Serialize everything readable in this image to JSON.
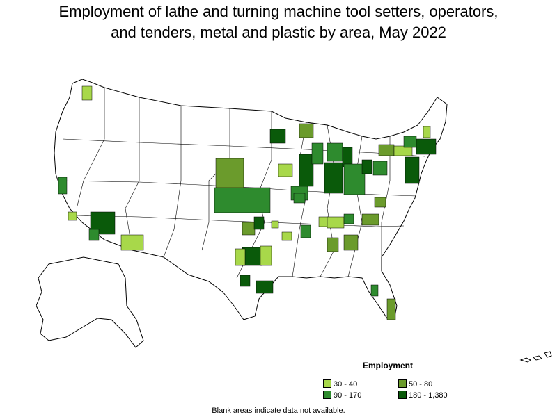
{
  "title_line1": "Employment of lathe and turning machine tool setters, operators,",
  "title_line2": "and tenders, metal and plastic by area, May 2022",
  "legend": {
    "title": "Employment",
    "items": [
      {
        "label": "30 - 40",
        "color": "#a8d84a"
      },
      {
        "label": "50 - 80",
        "color": "#6b9b2c"
      },
      {
        "label": "90 - 170",
        "color": "#2e8b2e"
      },
      {
        "label": "180 - 1,380",
        "color": "#0a5a0a"
      }
    ]
  },
  "note": "Blank areas indicate data not available.",
  "colors": {
    "border": "#000000",
    "no_data": "#ffffff"
  }
}
